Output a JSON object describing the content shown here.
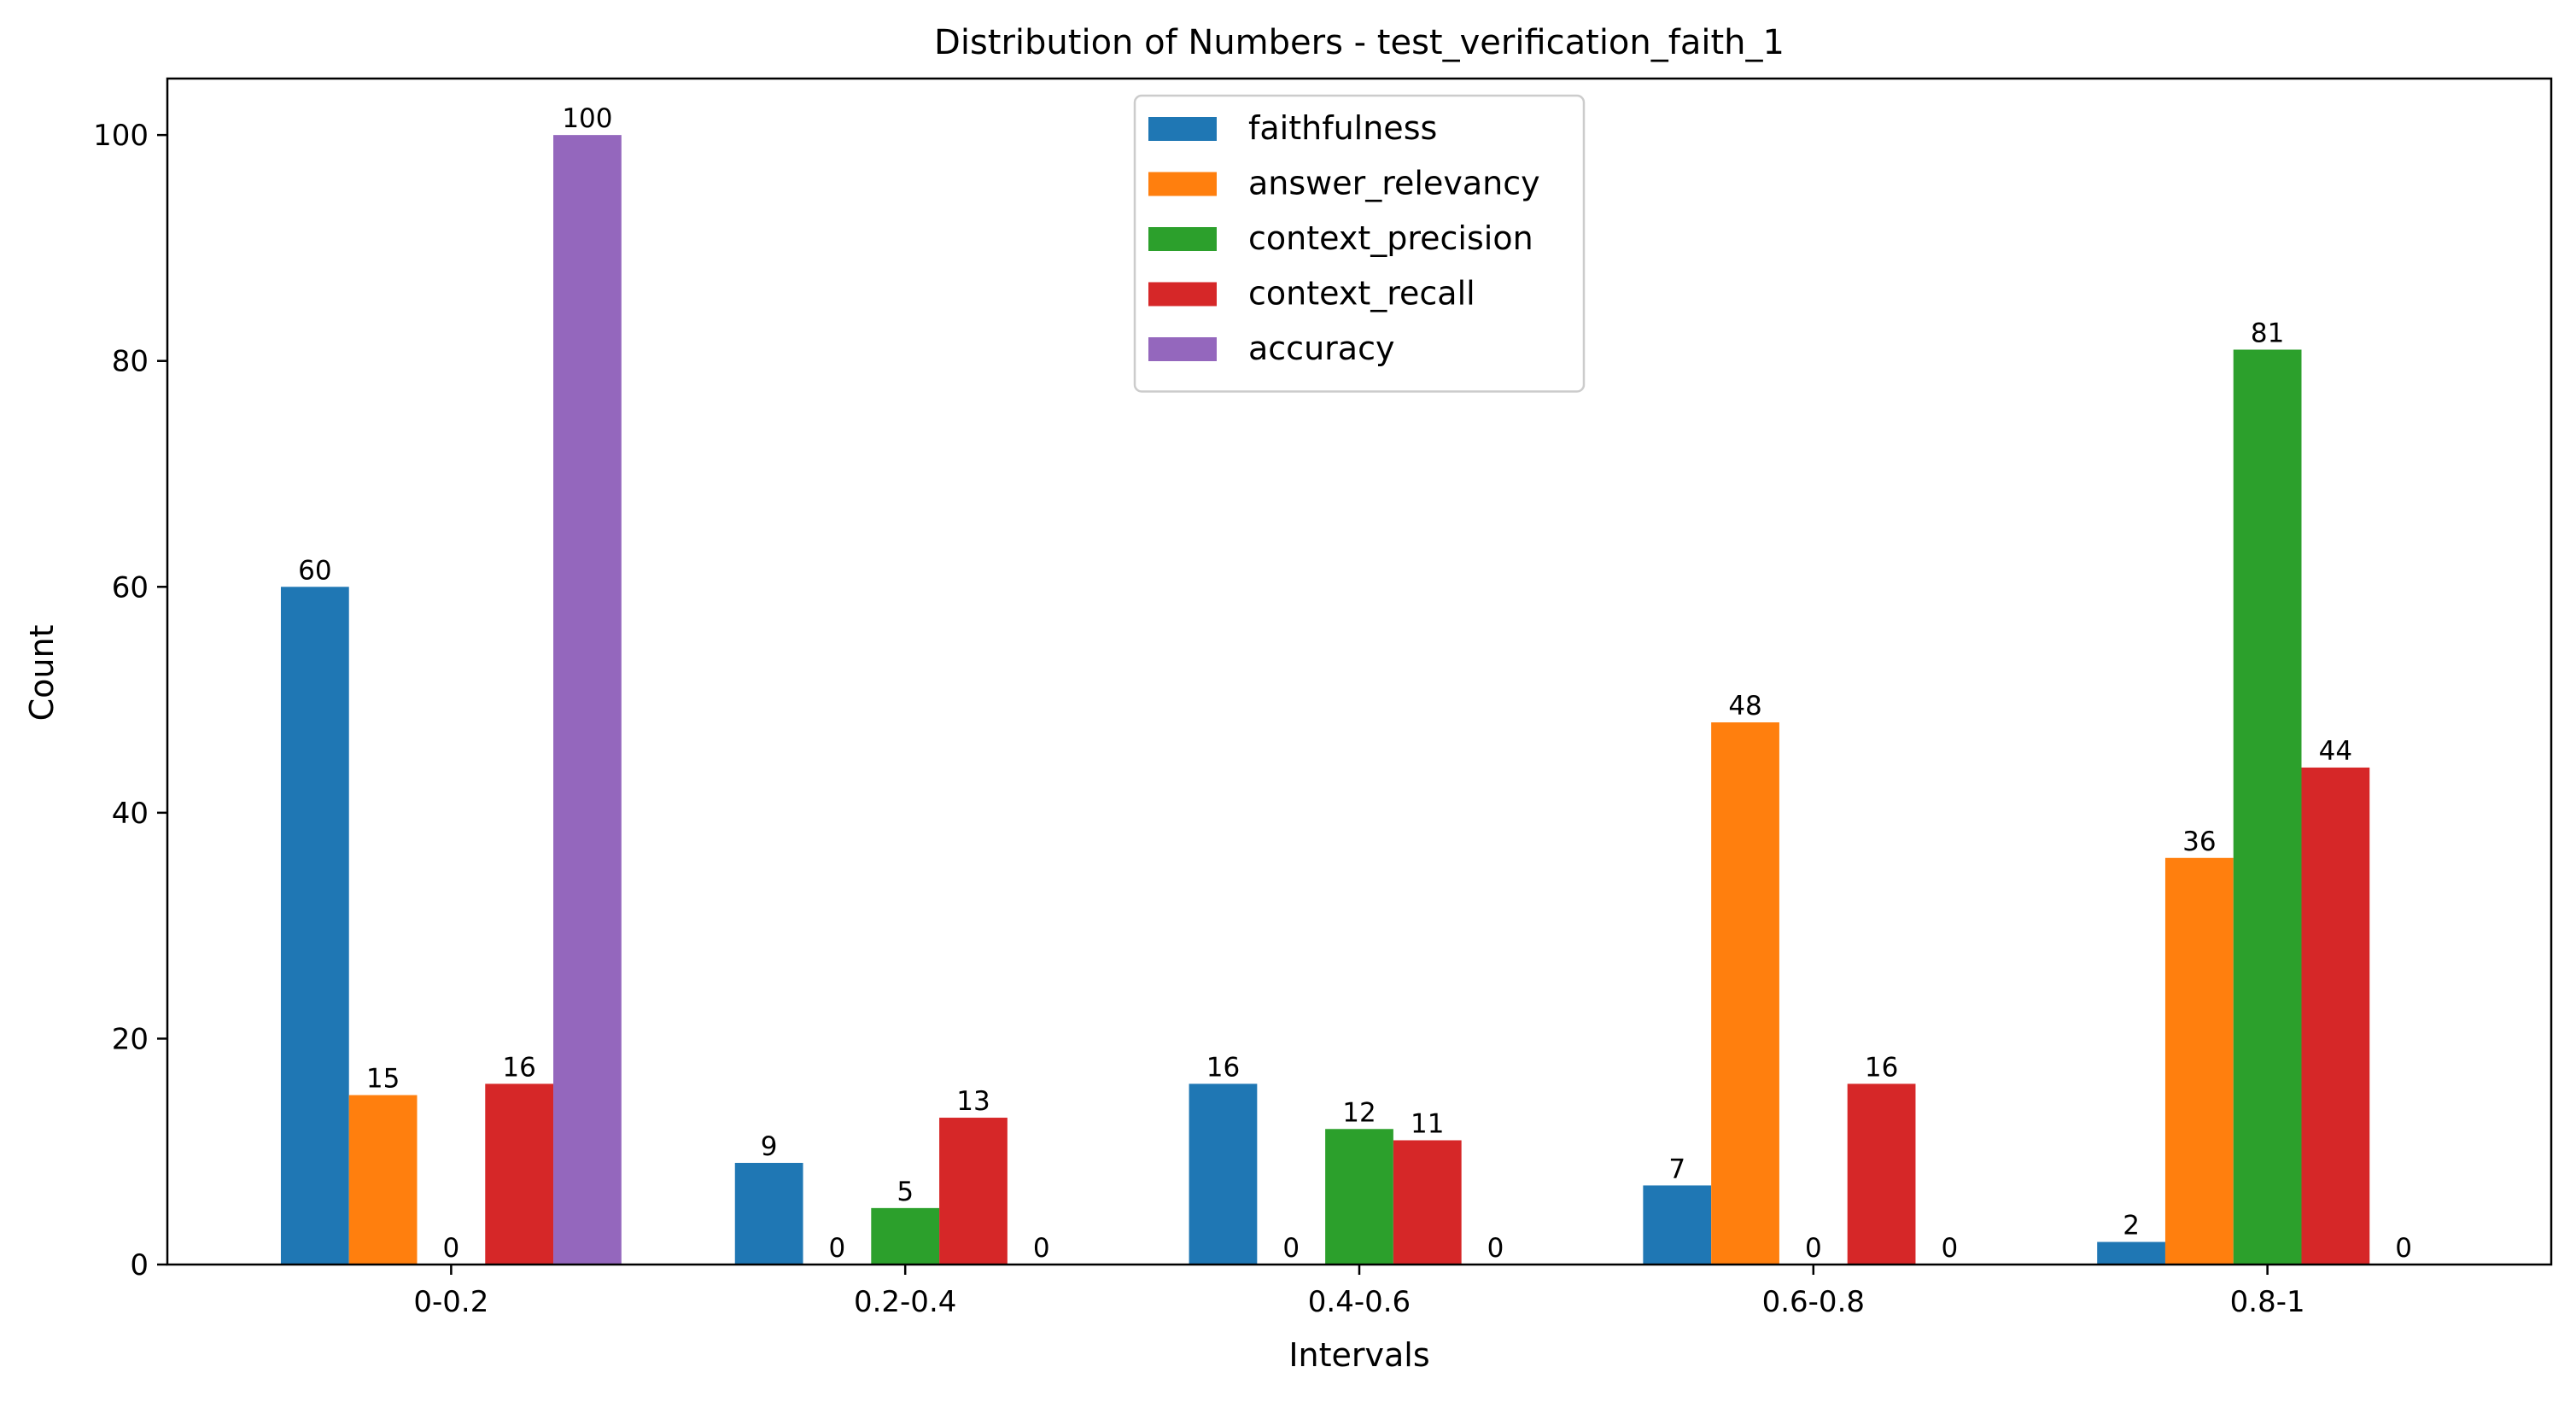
{
  "chart_data": {
    "type": "bar",
    "title": "Distribution of Numbers - test_verification_faith_1",
    "xlabel": "Intervals",
    "ylabel": "Count",
    "categories": [
      "0-0.2",
      "0.2-0.4",
      "0.4-0.6",
      "0.6-0.8",
      "0.8-1"
    ],
    "ylim": [
      0,
      105
    ],
    "yticks": [
      0,
      20,
      40,
      60,
      80,
      100
    ],
    "grid": false,
    "legend_position": "upper center",
    "series": [
      {
        "name": "faithfulness",
        "color": "#1f77b4",
        "values": [
          60,
          9,
          16,
          7,
          2
        ]
      },
      {
        "name": "answer_relevancy",
        "color": "#ff7f0e",
        "values": [
          15,
          0,
          0,
          48,
          36
        ]
      },
      {
        "name": "context_precision",
        "color": "#2ca02c",
        "values": [
          0,
          5,
          12,
          0,
          81
        ]
      },
      {
        "name": "context_recall",
        "color": "#d62728",
        "values": [
          16,
          13,
          11,
          16,
          44
        ]
      },
      {
        "name": "accuracy",
        "color": "#9467bd",
        "values": [
          100,
          0,
          0,
          0,
          0
        ]
      }
    ]
  }
}
